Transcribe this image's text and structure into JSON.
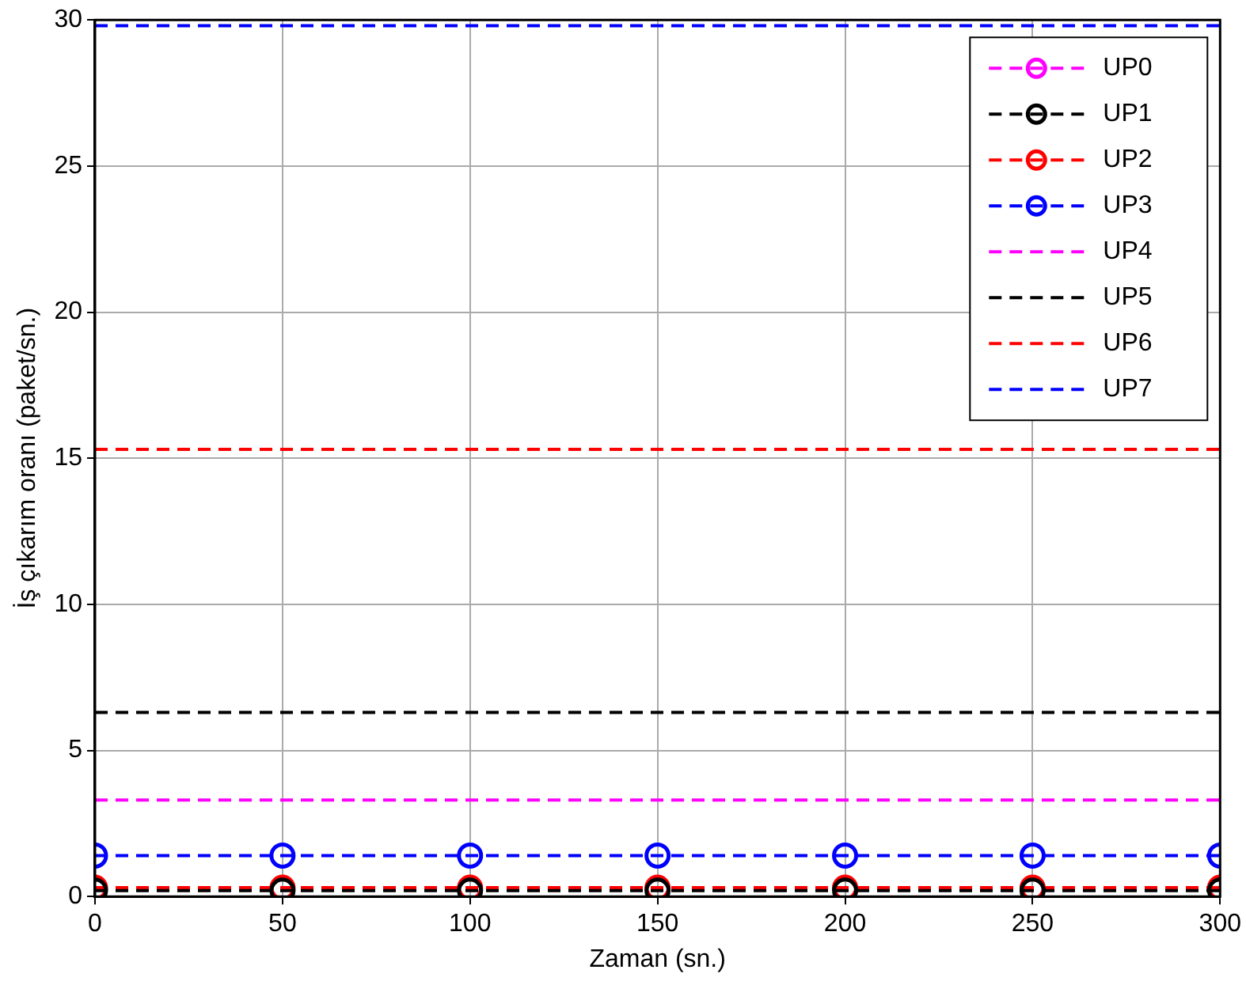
{
  "chart_data": {
    "type": "line",
    "xlabel": "Zaman (sn.)",
    "ylabel": "İş çıkarım oranı (paket/sn.)",
    "x": [
      0,
      50,
      100,
      150,
      200,
      250,
      300
    ],
    "xlim": [
      0,
      300
    ],
    "xticks": [
      0,
      50,
      100,
      150,
      200,
      250,
      300
    ],
    "ylim": [
      0,
      30
    ],
    "yticks": [
      0,
      5,
      10,
      15,
      20,
      25,
      30
    ],
    "grid": true,
    "legend": "top right",
    "line_style": "dashed",
    "series": [
      {
        "name": "UP0",
        "color": "#ff00ff",
        "marker": "circle",
        "values": [
          null,
          null,
          null,
          null,
          null,
          null,
          null
        ]
      },
      {
        "name": "UP1",
        "color": "#000000",
        "marker": "circle",
        "values": [
          0.2,
          0.2,
          0.2,
          0.2,
          0.2,
          0.2,
          0.2
        ]
      },
      {
        "name": "UP2",
        "color": "#ff0000",
        "marker": "circle",
        "values": [
          0.3,
          0.3,
          0.3,
          0.3,
          0.3,
          0.3,
          0.3
        ]
      },
      {
        "name": "UP3",
        "color": "#0000ff",
        "marker": "circle",
        "values": [
          1.4,
          1.4,
          1.4,
          1.4,
          1.4,
          1.4,
          1.4
        ]
      },
      {
        "name": "UP4",
        "color": "#ff00ff",
        "marker": "none",
        "values": [
          3.3,
          3.3,
          3.3,
          3.3,
          3.3,
          3.3,
          3.3
        ]
      },
      {
        "name": "UP5",
        "color": "#000000",
        "marker": "none",
        "values": [
          6.3,
          6.3,
          6.3,
          6.3,
          6.3,
          6.3,
          6.3
        ]
      },
      {
        "name": "UP6",
        "color": "#ff0000",
        "marker": "none",
        "values": [
          15.3,
          15.3,
          15.3,
          15.3,
          15.3,
          15.3,
          15.3
        ]
      },
      {
        "name": "UP7",
        "color": "#0000ff",
        "marker": "none",
        "values": [
          29.8,
          29.8,
          29.8,
          29.8,
          29.8,
          29.8,
          29.8
        ]
      }
    ]
  }
}
